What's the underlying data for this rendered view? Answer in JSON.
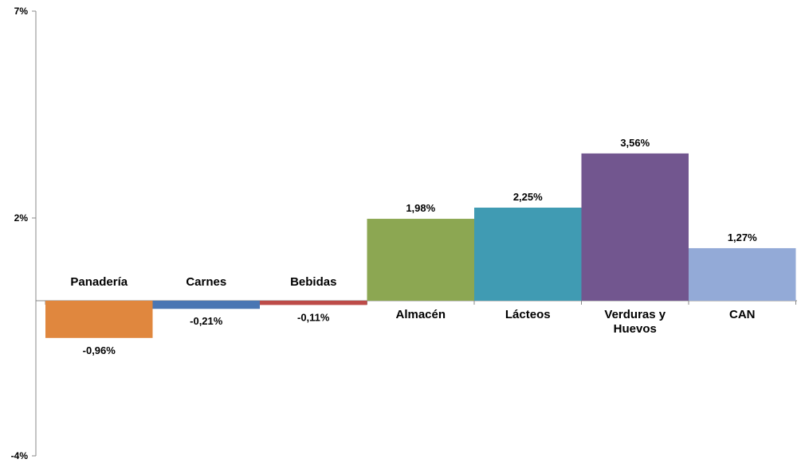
{
  "chart_data": {
    "type": "bar",
    "categories": [
      [
        "Panadería"
      ],
      [
        "Carnes"
      ],
      [
        "Bebidas"
      ],
      [
        "Almacén"
      ],
      [
        "Lácteos"
      ],
      [
        "Verduras y",
        "Huevos"
      ],
      [
        "CAN"
      ]
    ],
    "values": [
      -0.96,
      -0.21,
      -0.11,
      1.98,
      2.25,
      3.56,
      1.27
    ],
    "value_labels": [
      "-0,96%",
      "-0,21%",
      "-0,11%",
      "1,98%",
      "2,25%",
      "3,56%",
      "1,27%"
    ],
    "colors": [
      "#E0873E",
      "#4A76B3",
      "#BD4B48",
      "#8CA752",
      "#409BB3",
      "#72568F",
      "#93AAD7"
    ],
    "ylim": [
      -4,
      7
    ],
    "yticks": [
      -4,
      2,
      7
    ],
    "ytick_labels": [
      "-4%",
      "2%",
      "7%"
    ],
    "xlabel": "",
    "ylabel": "",
    "grid": false,
    "legend": "none"
  }
}
